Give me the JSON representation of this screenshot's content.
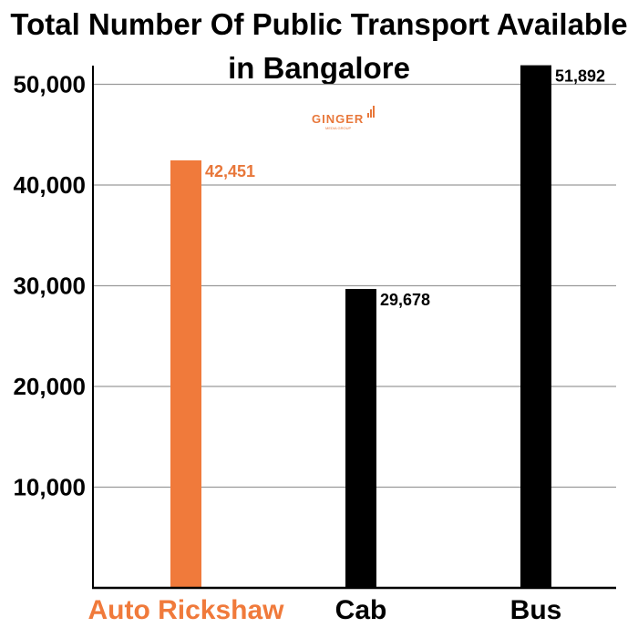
{
  "chart_data": {
    "type": "bar",
    "title_lines": [
      "Total Number Of Public Transport Available",
      "in Bangalore"
    ],
    "categories": [
      "Auto Rickshaw",
      "Cab",
      "Bus"
    ],
    "values": [
      42451,
      29678,
      51892
    ],
    "value_labels": [
      "42,451",
      "29,678",
      "51,892"
    ],
    "bar_colors": [
      "#f07a3b",
      "#000000",
      "#000000"
    ],
    "category_label_colors": [
      "#f07a3b",
      "#000000",
      "#000000"
    ],
    "data_label_colors": [
      "#e8773a",
      "#000000",
      "#000000"
    ],
    "ylim": [
      0,
      60000
    ],
    "yticks": [
      10000,
      20000,
      30000,
      40000,
      50000
    ],
    "ytick_labels": [
      "10,000",
      "20,000",
      "30,000",
      "40,000",
      "50,000"
    ],
    "grid": true,
    "xlabel": "",
    "ylabel": ""
  },
  "logo": {
    "text": "GINGER",
    "subtext": "MEDIA GROUP",
    "color": "#e8773a"
  }
}
